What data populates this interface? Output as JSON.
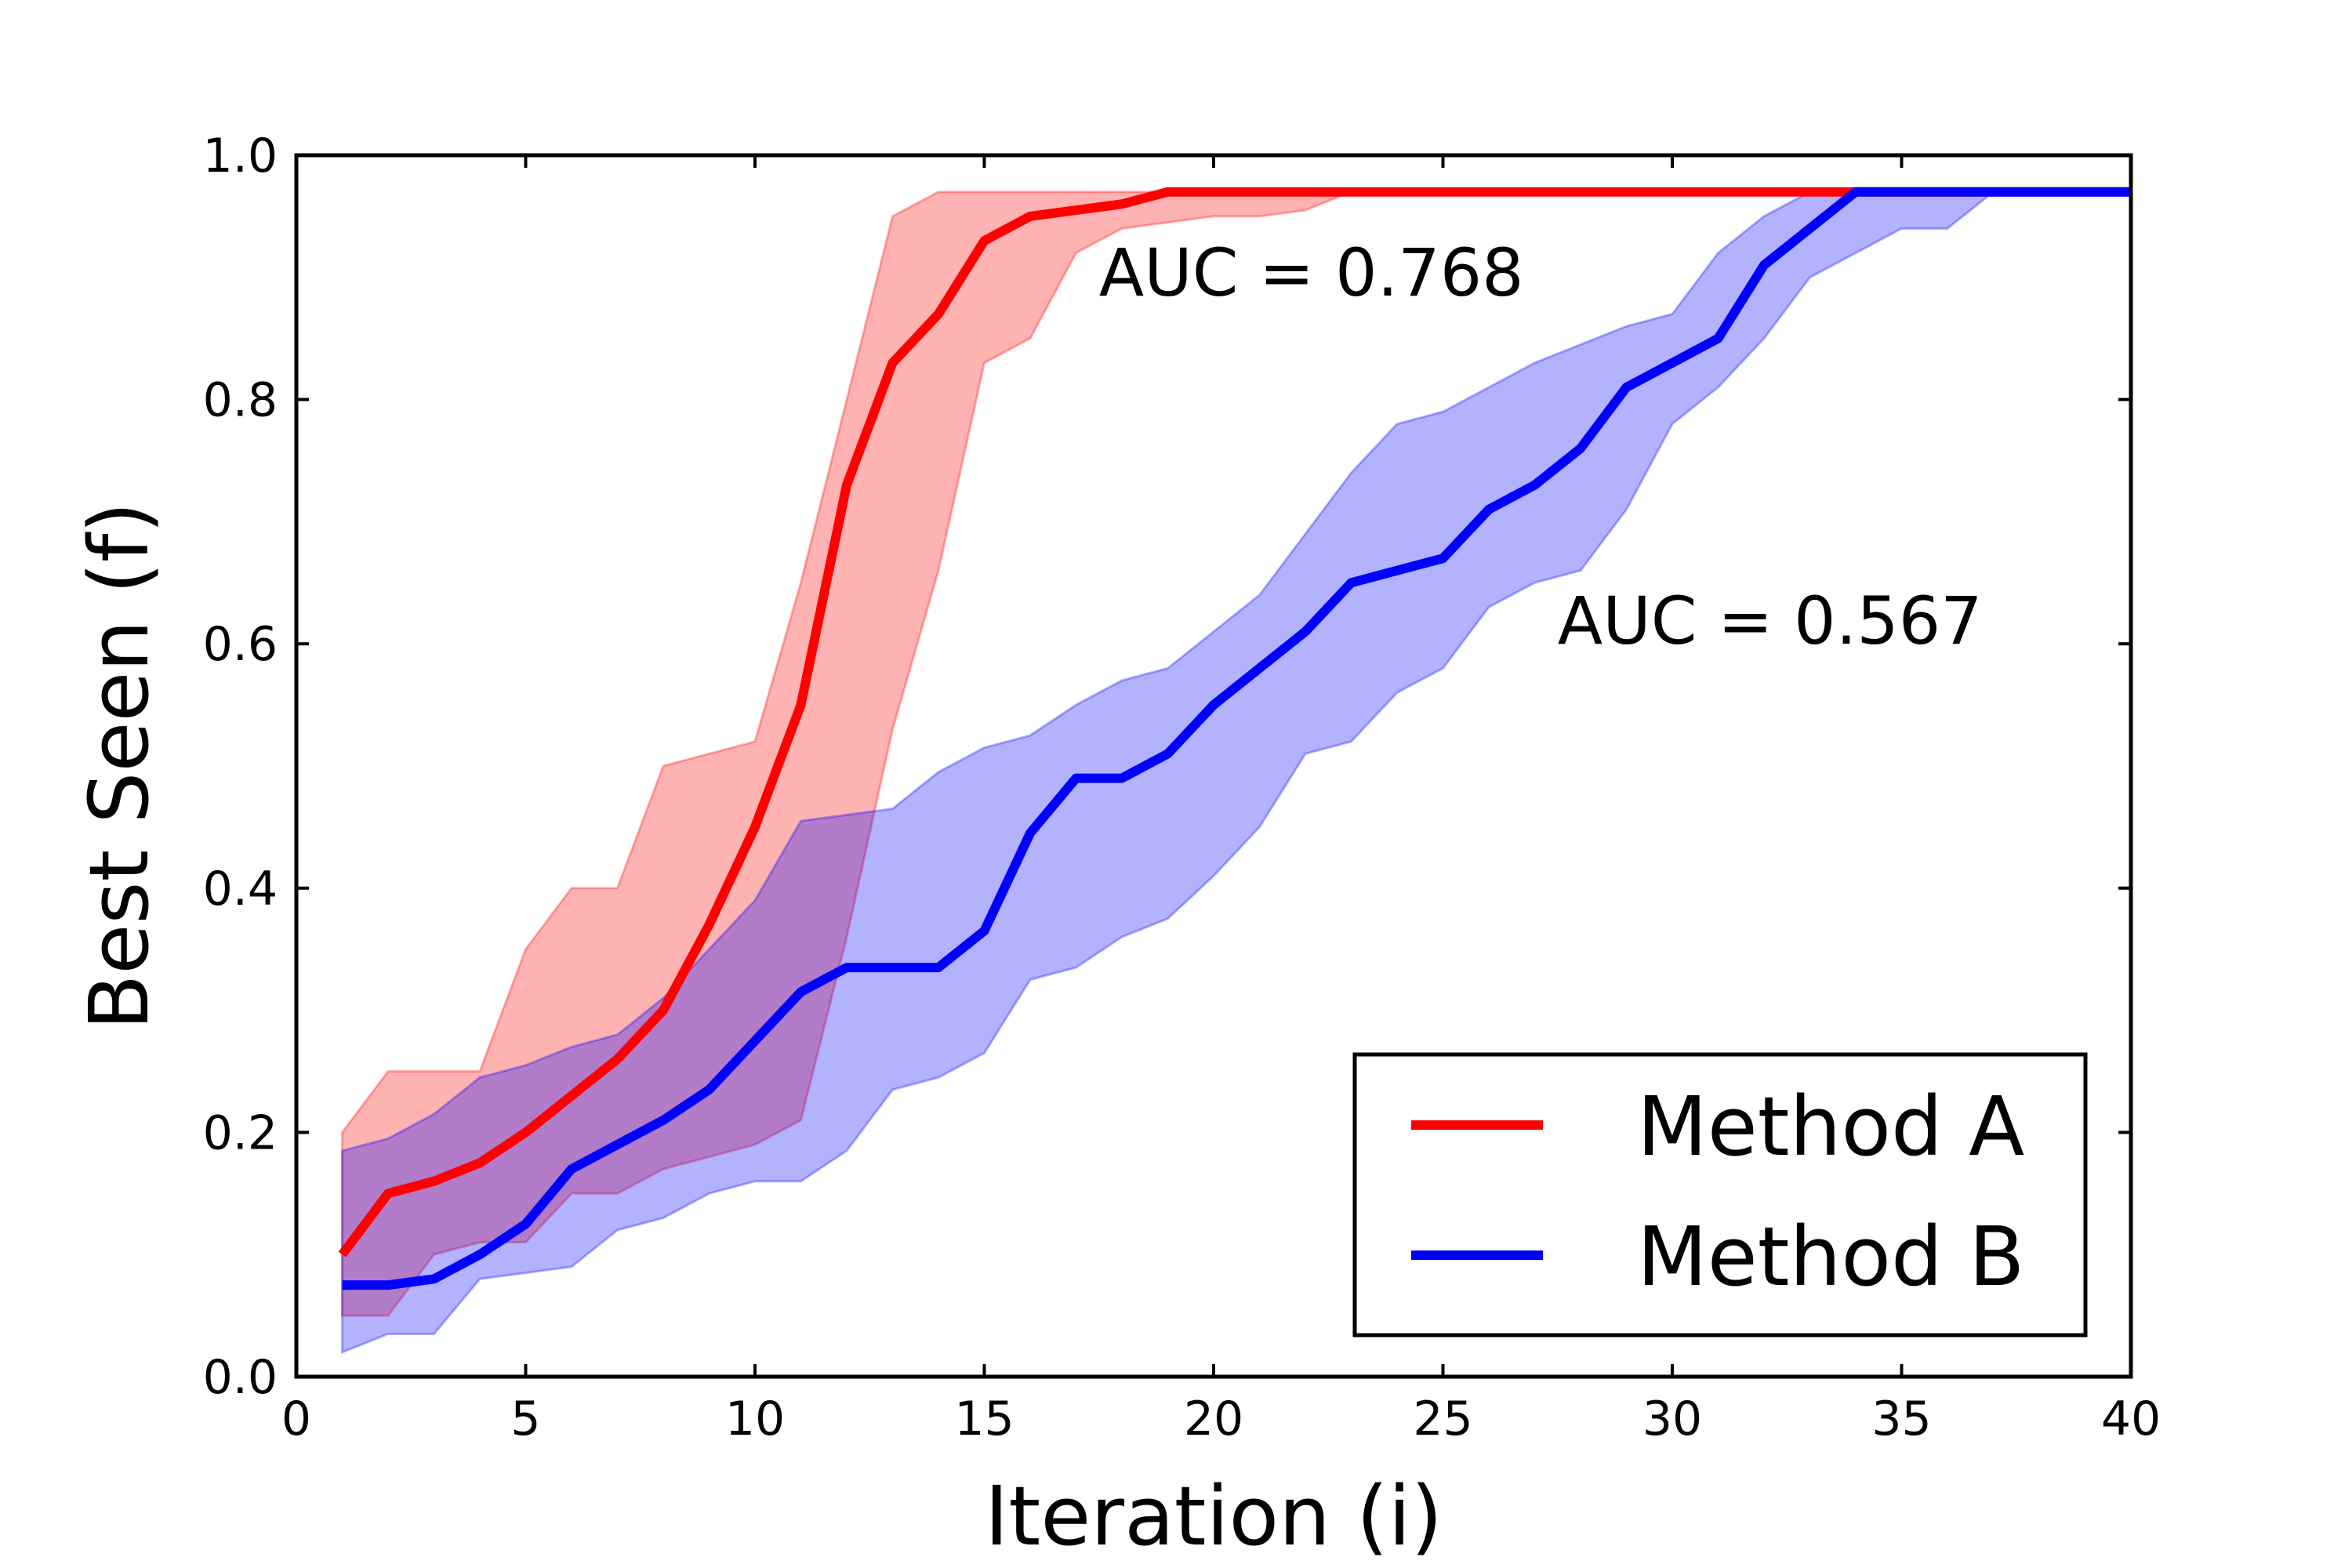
{
  "chart_data": {
    "type": "line",
    "xlabel": "Iteration (i)",
    "ylabel": "Best Seen (f)",
    "xlim": [
      0,
      40
    ],
    "ylim": [
      0.0,
      1.0
    ],
    "x_ticks": [
      "0",
      "5",
      "10",
      "15",
      "20",
      "25",
      "30",
      "35",
      "40"
    ],
    "y_ticks": [
      "0.0",
      "0.2",
      "0.4",
      "0.6",
      "0.8",
      "1.0"
    ],
    "grid": false,
    "legend": {
      "placement": "lower-right",
      "entries": [
        "Method A",
        "Method B"
      ]
    },
    "annotations": [
      {
        "text": "AUC = 0.768",
        "x": 17.5,
        "y": 0.885
      },
      {
        "text": "AUC = 0.567",
        "x": 27.5,
        "y": 0.6
      }
    ],
    "x": [
      1,
      2,
      3,
      4,
      5,
      6,
      7,
      8,
      9,
      10,
      11,
      12,
      13,
      14,
      15,
      16,
      17,
      18,
      19,
      20,
      21,
      22,
      23,
      24,
      25,
      26,
      27,
      28,
      29,
      30,
      31,
      32,
      33,
      34,
      35,
      36,
      37,
      38,
      39,
      40
    ],
    "series": [
      {
        "name": "Method A",
        "color": "#ff0000",
        "band_color": "#ff0000",
        "mean": [
          0.1,
          0.15,
          0.16,
          0.175,
          0.2,
          0.23,
          0.26,
          0.3,
          0.37,
          0.45,
          0.55,
          0.73,
          0.83,
          0.87,
          0.93,
          0.95,
          0.955,
          0.96,
          0.97,
          0.97,
          0.97,
          0.97,
          0.97,
          0.97,
          0.97,
          0.97,
          0.97,
          0.97,
          0.97,
          0.97,
          0.97,
          0.97,
          0.97,
          0.97,
          0.97,
          0.97,
          0.97,
          0.97,
          0.97,
          0.97
        ],
        "upper": [
          0.2,
          0.25,
          0.25,
          0.25,
          0.35,
          0.4,
          0.4,
          0.5,
          0.51,
          0.52,
          0.65,
          0.8,
          0.95,
          0.97,
          0.97,
          0.97,
          0.97,
          0.97,
          0.97,
          0.97,
          0.97,
          0.97,
          0.97,
          0.97,
          0.97,
          0.97,
          0.97,
          0.97,
          0.97,
          0.97,
          0.97,
          0.97,
          0.97,
          0.97,
          0.97,
          0.97,
          0.97,
          0.97,
          0.97,
          0.97
        ],
        "lower": [
          0.05,
          0.05,
          0.1,
          0.11,
          0.11,
          0.15,
          0.15,
          0.17,
          0.18,
          0.19,
          0.21,
          0.36,
          0.53,
          0.66,
          0.83,
          0.85,
          0.92,
          0.94,
          0.945,
          0.95,
          0.95,
          0.955,
          0.97,
          0.97,
          0.97,
          0.97,
          0.97,
          0.97,
          0.97,
          0.97,
          0.97,
          0.97,
          0.97,
          0.97,
          0.97,
          0.97,
          0.97,
          0.97,
          0.97,
          0.97
        ]
      },
      {
        "name": "Method B",
        "color": "#0000ff",
        "band_color": "#0000ff",
        "mean": [
          0.075,
          0.075,
          0.08,
          0.1,
          0.125,
          0.17,
          0.19,
          0.21,
          0.235,
          0.275,
          0.315,
          0.335,
          0.335,
          0.335,
          0.365,
          0.445,
          0.49,
          0.49,
          0.51,
          0.55,
          0.58,
          0.61,
          0.65,
          0.66,
          0.67,
          0.71,
          0.73,
          0.76,
          0.81,
          0.83,
          0.85,
          0.91,
          0.94,
          0.97,
          0.97,
          0.97,
          0.97,
          0.97,
          0.97,
          0.97
        ],
        "upper": [
          0.185,
          0.195,
          0.215,
          0.245,
          0.255,
          0.27,
          0.28,
          0.31,
          0.35,
          0.39,
          0.455,
          0.46,
          0.465,
          0.495,
          0.515,
          0.525,
          0.55,
          0.57,
          0.58,
          0.61,
          0.64,
          0.69,
          0.74,
          0.78,
          0.79,
          0.81,
          0.83,
          0.845,
          0.86,
          0.87,
          0.92,
          0.95,
          0.97,
          0.97,
          0.97,
          0.97,
          0.97,
          0.97,
          0.97,
          0.97
        ],
        "lower": [
          0.02,
          0.035,
          0.035,
          0.08,
          0.085,
          0.09,
          0.12,
          0.13,
          0.15,
          0.16,
          0.16,
          0.185,
          0.235,
          0.245,
          0.265,
          0.325,
          0.335,
          0.36,
          0.375,
          0.41,
          0.45,
          0.51,
          0.52,
          0.56,
          0.58,
          0.63,
          0.65,
          0.66,
          0.71,
          0.78,
          0.81,
          0.85,
          0.9,
          0.92,
          0.94,
          0.94,
          0.97,
          0.97,
          0.97,
          0.97
        ]
      }
    ]
  }
}
